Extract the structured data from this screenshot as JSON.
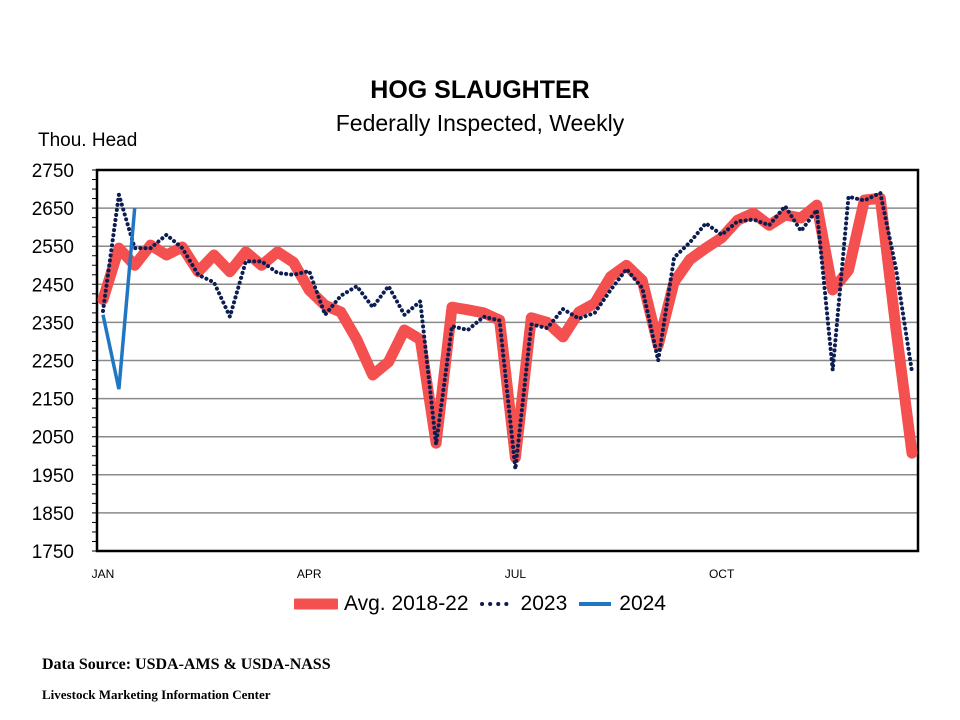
{
  "chart_data": {
    "type": "line",
    "title": "HOG SLAUGHTER",
    "subtitle": "Federally Inspected, Weekly",
    "ylabel": "Thou. Head",
    "xlabel": "",
    "ylim": [
      1750,
      2750
    ],
    "yticks": [
      1750,
      1850,
      1950,
      2050,
      2150,
      2250,
      2350,
      2450,
      2550,
      2650,
      2750
    ],
    "x_tick_labels": [
      {
        "label": "JAN",
        "week": 1
      },
      {
        "label": "APR",
        "week": 14
      },
      {
        "label": "JUL",
        "week": 27
      },
      {
        "label": "OCT",
        "week": 40
      }
    ],
    "grid": true,
    "legend": "bottom",
    "series": [
      {
        "name": "Avg. 2018-22",
        "color": "#f45050",
        "style": "thick",
        "values": [
          2410,
          2545,
          2500,
          2553,
          2527,
          2548,
          2483,
          2527,
          2483,
          2535,
          2500,
          2535,
          2508,
          2435,
          2395,
          2377,
          2305,
          2212,
          2246,
          2330,
          2305,
          2033,
          2390,
          2383,
          2375,
          2356,
          1995,
          2362,
          2350,
          2312,
          2377,
          2400,
          2470,
          2500,
          2460,
          2290,
          2456,
          2515,
          2545,
          2572,
          2618,
          2637,
          2605,
          2632,
          2624,
          2658,
          2435,
          2487,
          2671,
          2676,
          2330,
          2007
        ]
      },
      {
        "name": "2023",
        "color": "#0b1d51",
        "style": "dotted",
        "values": [
          2380,
          2685,
          2545,
          2545,
          2580,
          2545,
          2475,
          2455,
          2365,
          2510,
          2510,
          2480,
          2475,
          2485,
          2370,
          2420,
          2445,
          2390,
          2445,
          2370,
          2405,
          2030,
          2340,
          2330,
          2365,
          2355,
          1965,
          2345,
          2335,
          2385,
          2360,
          2375,
          2435,
          2490,
          2440,
          2250,
          2520,
          2560,
          2610,
          2580,
          2615,
          2620,
          2605,
          2655,
          2590,
          2645,
          2225,
          2680,
          2670,
          2690,
          2490,
          2220
        ]
      },
      {
        "name": "2024",
        "color": "#1f77c4",
        "style": "solid",
        "values": [
          2370,
          2175,
          2650
        ]
      }
    ]
  },
  "footer": {
    "source": "Data Source:  USDA-AMS & USDA-NASS",
    "credit": "Livestock Marketing Information  Center"
  }
}
